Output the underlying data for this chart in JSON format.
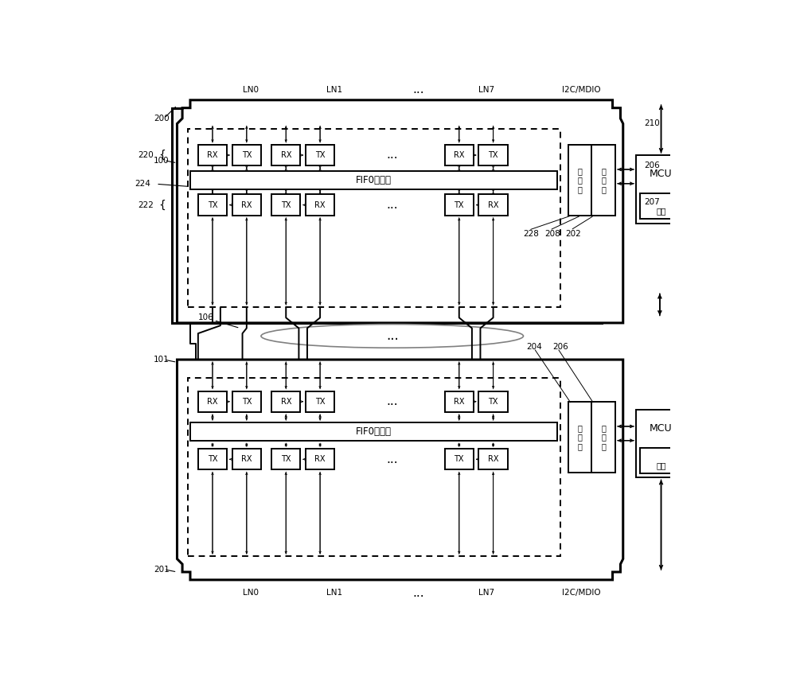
{
  "bg": "#ffffff",
  "fig_w": 10.0,
  "fig_h": 8.56,
  "label_200": "200",
  "label_100": "100",
  "label_101": "101",
  "label_201": "201",
  "label_106": "106",
  "label_202": "202",
  "label_204": "204",
  "label_206": "206",
  "label_207": "207",
  "label_208": "208",
  "label_210": "210",
  "label_220": "220",
  "label_222": "222",
  "label_224": "224",
  "label_228": "228",
  "fifo_text": "FIF0缓冲器",
  "ctrl_text_lines": [
    "控",
    "制",
    "器"
  ],
  "reg_text_lines": [
    "寄",
    "存",
    "器"
  ],
  "mcu_text": "MCU",
  "flash_text": "闪存",
  "ln0": "LN0",
  "ln1": "LN1",
  "ln7": "LN7",
  "dots": "...",
  "i2c": "I2C/MDIO",
  "rx": "RX",
  "tx": "TX"
}
